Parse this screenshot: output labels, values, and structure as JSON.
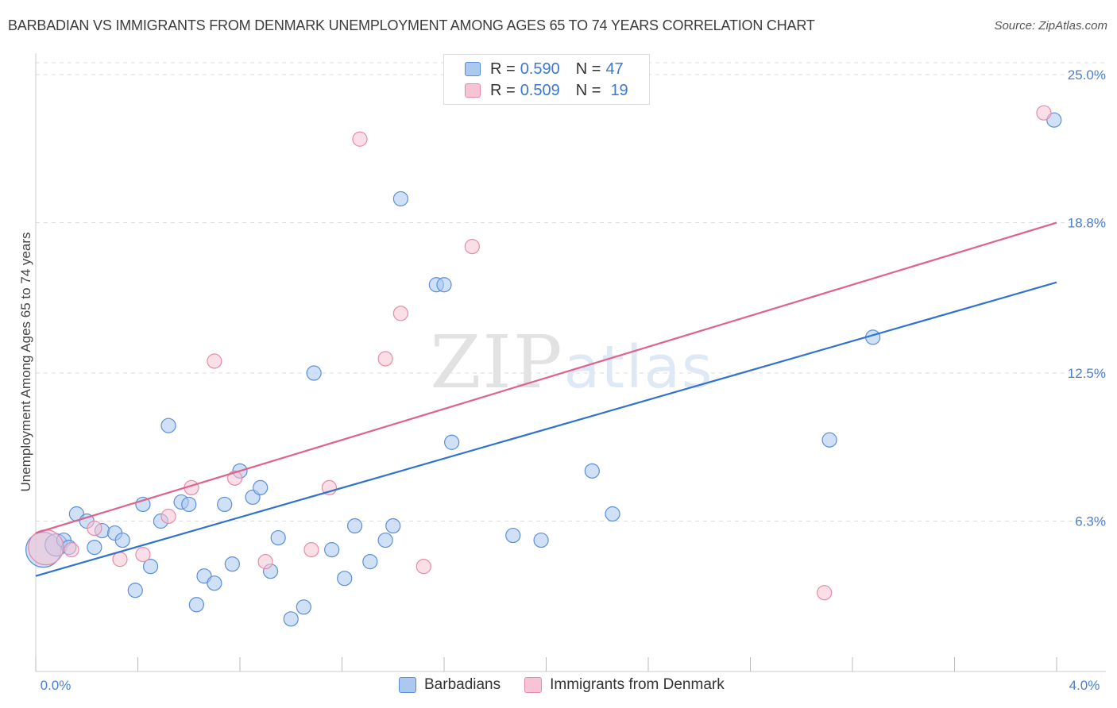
{
  "chart_data": {
    "type": "scatter",
    "title": "BARBADIAN VS IMMIGRANTS FROM DENMARK UNEMPLOYMENT AMONG AGES 65 TO 74 YEARS CORRELATION CHART",
    "source": "Source: ZipAtlas.com",
    "xlabel": "",
    "ylabel": "Unemployment Among Ages 65 to 74 years",
    "xlim": [
      0,
      4.0
    ],
    "ylim": [
      0,
      25.7
    ],
    "x_tick_labels": [
      {
        "value": 0.0,
        "label": "0.0%"
      },
      {
        "value": 4.0,
        "label": "4.0%"
      }
    ],
    "y_tick_labels": [
      {
        "value": 6.3,
        "label": "6.3%"
      },
      {
        "value": 12.5,
        "label": "12.5%"
      },
      {
        "value": 18.8,
        "label": "18.8%"
      },
      {
        "value": 25.0,
        "label": "25.0%"
      }
    ],
    "colors": {
      "barbadians_fill": "#aac8f0",
      "barbadians_stroke": "#5a8fd8",
      "barbadians_line": "#2f72d0",
      "denmark_fill": "#f8c4d4",
      "denmark_stroke": "#e88aaa",
      "denmark_line": "#e0628c",
      "grid": "#dddddd",
      "accent_text": "#3c78d0"
    },
    "legend_stats": [
      {
        "swatch": "barbadians",
        "r_label": "R =",
        "r_value": "0.590",
        "n_label": "N =",
        "n_value": "47"
      },
      {
        "swatch": "denmark",
        "r_label": "R =",
        "r_value": "0.509",
        "n_label": "N =",
        "n_value": "19"
      }
    ],
    "legend_bottom": [
      "Barbadians",
      "Immigrants from Denmark"
    ],
    "watermark": "ZIPatlas",
    "series": [
      {
        "name": "Barbadians",
        "key": "barbadians",
        "trend": {
          "x0": 0.0,
          "y0": 4.0,
          "x1": 4.0,
          "y1": 16.3
        },
        "points": [
          [
            0.03,
            5.1,
            22
          ],
          [
            0.08,
            5.3,
            14
          ],
          [
            0.11,
            5.5,
            9
          ],
          [
            0.16,
            6.6,
            9
          ],
          [
            0.2,
            6.3,
            9
          ],
          [
            0.23,
            5.2,
            9
          ],
          [
            0.26,
            5.9,
            9
          ],
          [
            0.31,
            5.8,
            9
          ],
          [
            0.34,
            5.5,
            9
          ],
          [
            0.39,
            3.4,
            9
          ],
          [
            0.42,
            7.0,
            9
          ],
          [
            0.45,
            4.4,
            9
          ],
          [
            0.49,
            6.3,
            9
          ],
          [
            0.52,
            10.3,
            9
          ],
          [
            0.57,
            7.1,
            9
          ],
          [
            0.6,
            7.0,
            9
          ],
          [
            0.63,
            2.8,
            9
          ],
          [
            0.66,
            4.0,
            9
          ],
          [
            0.7,
            3.7,
            9
          ],
          [
            0.74,
            7.0,
            9
          ],
          [
            0.77,
            4.5,
            9
          ],
          [
            0.8,
            8.4,
            9
          ],
          [
            0.85,
            7.3,
            9
          ],
          [
            0.88,
            7.7,
            9
          ],
          [
            0.92,
            4.2,
            9
          ],
          [
            0.95,
            5.6,
            9
          ],
          [
            1.0,
            2.2,
            9
          ],
          [
            1.05,
            2.7,
            9
          ],
          [
            1.09,
            12.5,
            9
          ],
          [
            1.16,
            5.1,
            9
          ],
          [
            1.21,
            3.9,
            9
          ],
          [
            1.25,
            6.1,
            9
          ],
          [
            1.31,
            4.6,
            9
          ],
          [
            1.37,
            5.5,
            9
          ],
          [
            1.4,
            6.1,
            9
          ],
          [
            1.43,
            19.8,
            9
          ],
          [
            1.57,
            16.2,
            9
          ],
          [
            1.6,
            16.2,
            9
          ],
          [
            1.63,
            9.6,
            9
          ],
          [
            1.87,
            5.7,
            9
          ],
          [
            1.98,
            5.5,
            9
          ],
          [
            2.18,
            8.4,
            9
          ],
          [
            2.26,
            6.6,
            9
          ],
          [
            3.11,
            9.7,
            9
          ],
          [
            3.28,
            14.0,
            9
          ],
          [
            3.99,
            23.1,
            9
          ],
          [
            0.13,
            5.2,
            9
          ]
        ]
      },
      {
        "name": "Immigrants from Denmark",
        "key": "denmark",
        "trend": {
          "x0": 0.0,
          "y0": 5.8,
          "x1": 4.0,
          "y1": 18.8
        },
        "points": [
          [
            0.04,
            5.2,
            22
          ],
          [
            0.14,
            5.1,
            9
          ],
          [
            0.23,
            6.0,
            9
          ],
          [
            0.33,
            4.7,
            9
          ],
          [
            0.42,
            4.9,
            9
          ],
          [
            0.52,
            6.5,
            9
          ],
          [
            0.61,
            7.7,
            9
          ],
          [
            0.7,
            13.0,
            9
          ],
          [
            0.78,
            8.1,
            9
          ],
          [
            0.9,
            4.6,
            9
          ],
          [
            1.08,
            5.1,
            9
          ],
          [
            1.15,
            7.7,
            9
          ],
          [
            1.27,
            22.3,
            9
          ],
          [
            1.37,
            13.1,
            9
          ],
          [
            1.43,
            15.0,
            9
          ],
          [
            1.52,
            4.4,
            9
          ],
          [
            1.71,
            17.8,
            9
          ],
          [
            3.09,
            3.3,
            9
          ],
          [
            3.95,
            23.4,
            9
          ]
        ]
      }
    ]
  }
}
